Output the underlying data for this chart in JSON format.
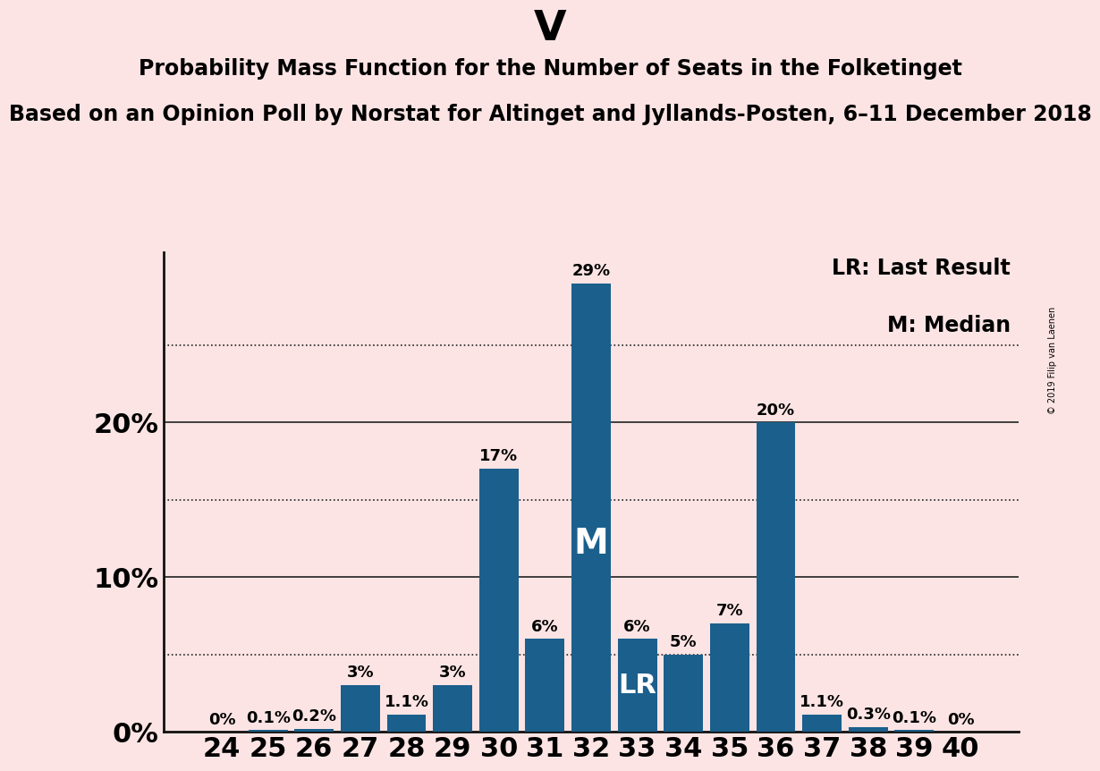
{
  "title": "V",
  "subtitle1": "Probability Mass Function for the Number of Seats in the Folketinget",
  "subtitle2": "Based on an Opinion Poll by Norstat for Altinget and Jyllands-Posten, 6–11 December 2018",
  "watermark": "© 2019 Filip van Laenen",
  "seats": [
    24,
    25,
    26,
    27,
    28,
    29,
    30,
    31,
    32,
    33,
    34,
    35,
    36,
    37,
    38,
    39,
    40
  ],
  "probabilities": [
    0.0,
    0.1,
    0.2,
    3.0,
    1.1,
    3.0,
    17.0,
    6.0,
    29.0,
    6.0,
    5.0,
    7.0,
    20.0,
    1.1,
    0.3,
    0.1,
    0.0
  ],
  "labels": [
    "0%",
    "0.1%",
    "0.2%",
    "3%",
    "1.1%",
    "3%",
    "17%",
    "6%",
    "29%",
    "6%",
    "5%",
    "7%",
    "20%",
    "1.1%",
    "0.3%",
    "0.1%",
    "0%"
  ],
  "bar_color": "#1b5f8c",
  "background_color": "#fce4e4",
  "median_seat": 32,
  "lr_seat": 33,
  "legend_lr": "LR: Last Result",
  "legend_m": "M: Median",
  "solid_grid": [
    10,
    20
  ],
  "dotted_grid": [
    5,
    15,
    25
  ],
  "ytick_labels": [
    0,
    10,
    20
  ],
  "ylim": [
    0,
    31
  ],
  "title_fontsize": 34,
  "subtitle1_fontsize": 17,
  "subtitle2_fontsize": 17,
  "bar_label_fontsize": 13,
  "axis_label_fontsize": 22,
  "legend_fontsize": 17,
  "watermark_fontsize": 7
}
